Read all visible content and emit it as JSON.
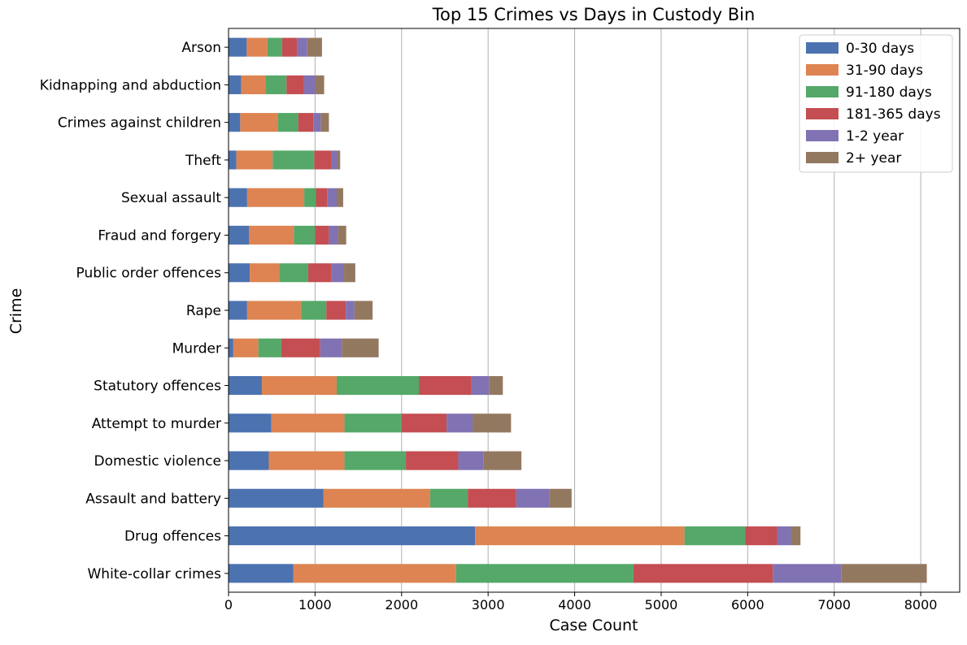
{
  "chart_data": {
    "type": "bar",
    "orientation": "horizontal",
    "stacked": true,
    "title": "Top 15 Crimes vs Days in Custody Bin",
    "xlabel": "Case Count",
    "ylabel": "Crime",
    "xlim": [
      0,
      8450
    ],
    "xticks": [
      0,
      1000,
      2000,
      3000,
      4000,
      5000,
      6000,
      7000,
      8000
    ],
    "grid": "x",
    "legend_position": "top-right",
    "categories": [
      "White-collar crimes",
      "Drug offences",
      "Assault and battery",
      "Domestic violence",
      "Attempt to murder",
      "Statutory offences",
      "Murder",
      "Rape",
      "Public order offences",
      "Fraud and forgery",
      "Sexual assault",
      "Theft",
      "Crimes against children",
      "Kidnapping and abduction",
      "Arson"
    ],
    "series": [
      {
        "name": "0-30 days",
        "color": "#4c72b0",
        "values": [
          750,
          2850,
          1095,
          465,
          495,
          385,
          55,
          215,
          245,
          235,
          215,
          90,
          135,
          145,
          210
        ]
      },
      {
        "name": "31-90 days",
        "color": "#dd8452",
        "values": [
          1880,
          2420,
          1235,
          875,
          845,
          865,
          290,
          625,
          340,
          520,
          660,
          420,
          435,
          280,
          240
        ]
      },
      {
        "name": "91-180 days",
        "color": "#55a868",
        "values": [
          2050,
          700,
          435,
          710,
          660,
          950,
          265,
          290,
          335,
          245,
          135,
          480,
          235,
          245,
          170
        ]
      },
      {
        "name": "181-365 days",
        "color": "#c44e52",
        "values": [
          1610,
          370,
          560,
          605,
          520,
          605,
          450,
          225,
          265,
          160,
          130,
          200,
          175,
          200,
          170
        ]
      },
      {
        "name": "1-2 year",
        "color": "#8172b3",
        "values": [
          790,
          160,
          380,
          290,
          300,
          205,
          250,
          100,
          150,
          105,
          110,
          65,
          85,
          130,
          120
        ]
      },
      {
        "name": "2+ year",
        "color": "#937860",
        "values": [
          990,
          110,
          260,
          440,
          445,
          160,
          425,
          210,
          130,
          95,
          75,
          35,
          95,
          105,
          170
        ]
      }
    ]
  }
}
